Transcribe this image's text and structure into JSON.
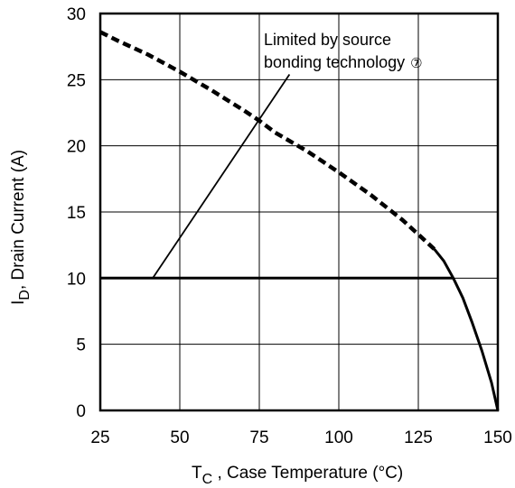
{
  "chart_data": {
    "type": "line",
    "title": "",
    "xlabel": {
      "main": "T",
      "sub": "C",
      "rest": " , Case Temperature (°C)"
    },
    "ylabel": {
      "main": "I",
      "sub": "D",
      "rest": ",  Drain Current (A)"
    },
    "xlim": [
      25,
      150
    ],
    "ylim": [
      0,
      30
    ],
    "x_ticks": [
      "25",
      "50",
      "75",
      "100",
      "125",
      "150"
    ],
    "y_ticks": [
      "0",
      "5",
      "10",
      "15",
      "20",
      "25",
      "30"
    ],
    "grid": true,
    "annotation": {
      "line1": "Limited by source",
      "line2": "bonding technology",
      "marker": "⑦"
    },
    "series": [
      {
        "style": "dashed",
        "x": [
          25,
          30,
          40,
          50,
          60,
          70,
          75,
          80,
          90,
          100,
          110,
          120,
          125,
          130
        ],
        "y": [
          28.6,
          28.0,
          26.9,
          25.6,
          24.2,
          22.7,
          21.9,
          21.0,
          19.6,
          18.0,
          16.3,
          14.4,
          13.3,
          12.2
        ]
      },
      {
        "style": "solid",
        "x": [
          130,
          133,
          136,
          139,
          142,
          145,
          148,
          150
        ],
        "y": [
          12.2,
          11.3,
          10.0,
          8.5,
          6.6,
          4.5,
          2.1,
          0
        ]
      },
      {
        "style": "solid",
        "x": [
          25,
          136
        ],
        "y": [
          10,
          10
        ]
      },
      {
        "style": "solid",
        "x": [
          41.5,
          84.5
        ],
        "y": [
          10,
          25.4
        ]
      }
    ]
  }
}
